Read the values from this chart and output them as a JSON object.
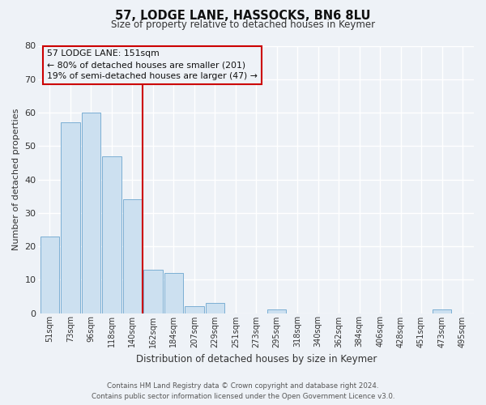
{
  "title": "57, LODGE LANE, HASSOCKS, BN6 8LU",
  "subtitle": "Size of property relative to detached houses in Keymer",
  "xlabel": "Distribution of detached houses by size in Keymer",
  "ylabel": "Number of detached properties",
  "bar_color": "#cce0f0",
  "bar_edge_color": "#7bafd4",
  "background_color": "#eef2f7",
  "grid_color": "#ffffff",
  "categories": [
    "51sqm",
    "73sqm",
    "96sqm",
    "118sqm",
    "140sqm",
    "162sqm",
    "184sqm",
    "207sqm",
    "229sqm",
    "251sqm",
    "273sqm",
    "295sqm",
    "318sqm",
    "340sqm",
    "362sqm",
    "384sqm",
    "406sqm",
    "428sqm",
    "451sqm",
    "473sqm",
    "495sqm"
  ],
  "values": [
    23,
    57,
    60,
    47,
    34,
    13,
    12,
    2,
    3,
    0,
    0,
    1,
    0,
    0,
    0,
    0,
    0,
    0,
    0,
    1,
    0
  ],
  "ylim": [
    0,
    80
  ],
  "yticks": [
    0,
    10,
    20,
    30,
    40,
    50,
    60,
    70,
    80
  ],
  "marker_color": "#cc0000",
  "annotation_title": "57 LODGE LANE: 151sqm",
  "annotation_line1": "← 80% of detached houses are smaller (201)",
  "annotation_line2": "19% of semi-detached houses are larger (47) →",
  "footer_line1": "Contains HM Land Registry data © Crown copyright and database right 2024.",
  "footer_line2": "Contains public sector information licensed under the Open Government Licence v3.0."
}
